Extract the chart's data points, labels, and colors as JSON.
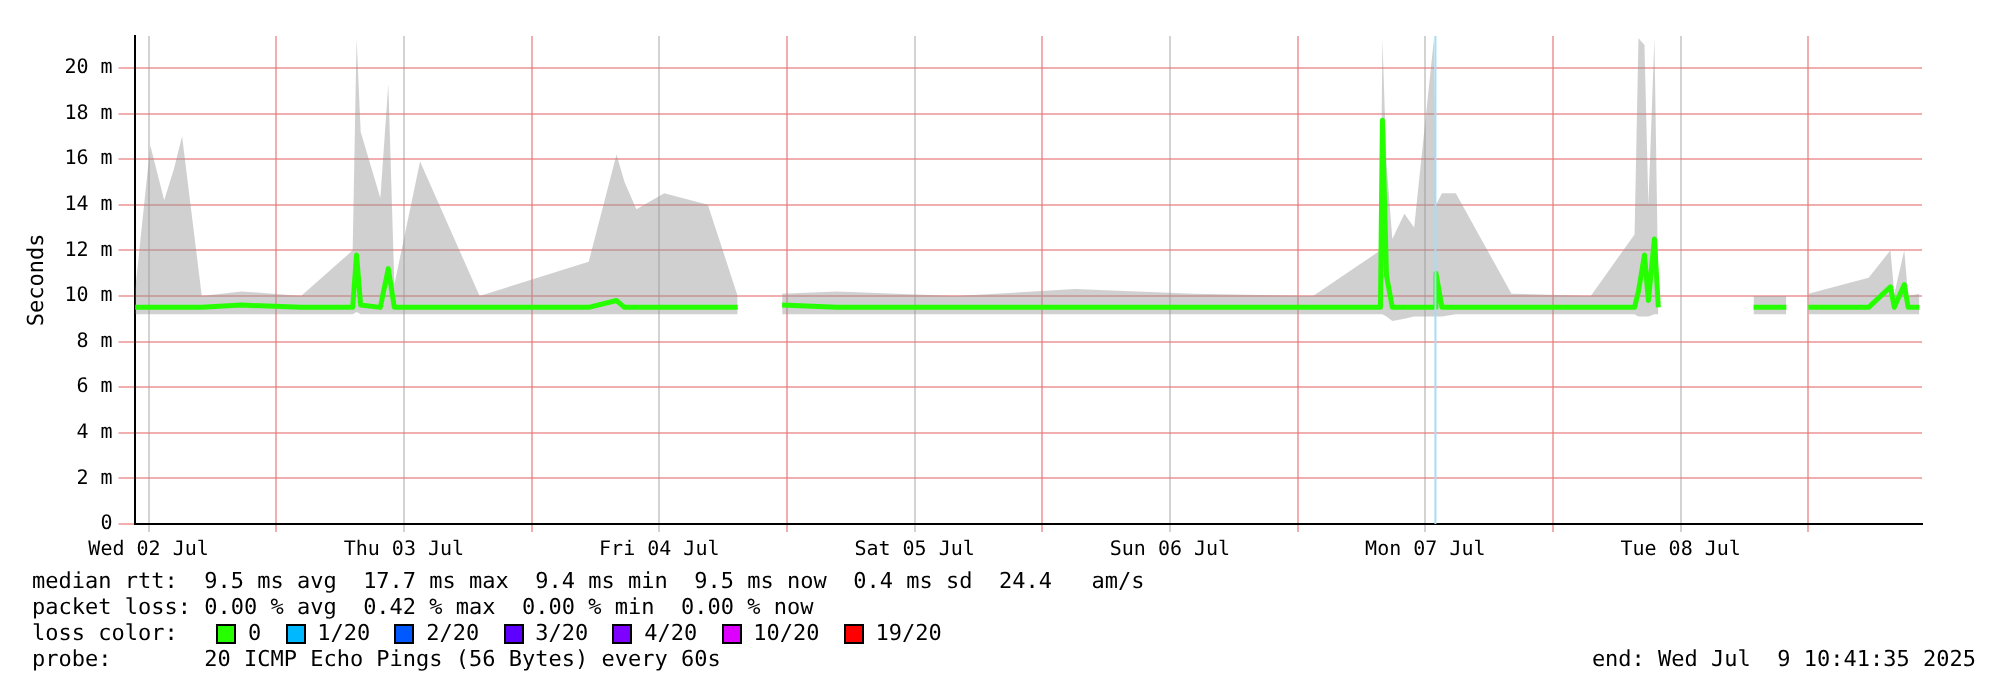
{
  "chart_data": {
    "type": "line",
    "ylabel": "Seconds",
    "legend_title": "loss color:",
    "legend": "bottom",
    "grid": true,
    "marker": "none",
    "line_style": "solid",
    "xlim": [
      "2025-07-02T10:41",
      "2025-07-09T10:41"
    ],
    "xticks": [
      {
        "value": "2025-07-02T12:00",
        "label": "Wed 02 Jul"
      },
      {
        "value": "2025-07-03T00:00",
        "label": null
      },
      {
        "value": "2025-07-03T12:00",
        "label": "Thu 03 Jul"
      },
      {
        "value": "2025-07-04T00:00",
        "label": null
      },
      {
        "value": "2025-07-04T12:00",
        "label": "Fri 04 Jul"
      },
      {
        "value": "2025-07-05T00:00",
        "label": null
      },
      {
        "value": "2025-07-05T12:00",
        "label": "Sat 05 Jul"
      },
      {
        "value": "2025-07-06T00:00",
        "label": null
      },
      {
        "value": "2025-07-06T12:00",
        "label": "Sun 06 Jul"
      },
      {
        "value": "2025-07-07T00:00",
        "label": null
      },
      {
        "value": "2025-07-07T12:00",
        "label": "Mon 07 Jul"
      },
      {
        "value": "2025-07-08T00:00",
        "label": null
      },
      {
        "value": "2025-07-08T12:00",
        "label": "Tue 08 Jul"
      },
      {
        "value": "2025-07-09T00:00",
        "label": null
      }
    ],
    "ylim": [
      0,
      21.4
    ],
    "yticks": [
      0,
      {
        "value": 2,
        "label": "2 m"
      },
      {
        "value": 4,
        "label": "4 m"
      },
      {
        "value": 6,
        "label": "6 m"
      },
      {
        "value": 8,
        "label": "8 m"
      },
      {
        "value": 10,
        "label": "10 m"
      },
      {
        "value": 12,
        "label": "12 m"
      },
      {
        "value": 14,
        "label": "14 m"
      },
      {
        "value": 16,
        "label": "16 m"
      },
      {
        "value": 18,
        "label": "18 m"
      },
      {
        "value": 20,
        "label": "20 m"
      }
    ],
    "ref_lines": [
      {
        "axis": "x",
        "value": "2025-07-07T12:57",
        "color": "#a8dcf4"
      }
    ],
    "series": [
      {
        "name": "0",
        "color": "#26ff00",
        "x": [
          "2025-07-02T10:45",
          "2025-07-02T12:10",
          "2025-07-02T13:28",
          "2025-07-02T14:24",
          "2025-07-02T15:09",
          "2025-07-02T17:00",
          "2025-07-02T20:44",
          "2025-07-03T02:20",
          "2025-07-03T07:11",
          "2025-07-03T07:33",
          "2025-07-03T07:56",
          "2025-07-03T09:47",
          "2025-07-03T10:32",
          "2025-07-03T11:06",
          "2025-07-03T13:31",
          "2025-07-03T19:07",
          "2025-07-04T05:22",
          "2025-07-04T07:59",
          "2025-07-04T08:44",
          "2025-07-04T09:51",
          "2025-07-04T12:28",
          "2025-07-04T16:34",
          "2025-07-04T19:22",
          "2025-07-04T21:00",
          "2025-07-04T23:33",
          "2025-07-05T04:41",
          "2025-07-05T15:53",
          "2025-07-06T03:04",
          "2025-07-06T14:15",
          "2025-07-07T01:27",
          "2025-07-07T07:47",
          "2025-07-07T07:58",
          "2025-07-07T08:21",
          "2025-07-07T08:54",
          "2025-07-07T10:02",
          "2025-07-07T10:57",
          "2025-07-07T12:49",
          "2025-07-07T13:00",
          "2025-07-07T13:34",
          "2025-07-07T14:52",
          "2025-07-07T20:06",
          "2025-07-08T03:33",
          "2025-07-08T07:40",
          "2025-07-08T08:02",
          "2025-07-08T08:36",
          "2025-07-08T08:58",
          "2025-07-08T09:32",
          "2025-07-08T09:54",
          "2025-07-08T12:00",
          "2025-07-08T18:51",
          "2025-07-08T21:56",
          "2025-07-08T22:30",
          "2025-07-09T00:00",
          "2025-07-09T05:40",
          "2025-07-09T07:43",
          "2025-07-09T08:05",
          "2025-07-09T09:01",
          "2025-07-09T09:23",
          "2025-07-09T10:26"
        ],
        "values": [
          9.5,
          9.5,
          9.5,
          9.5,
          9.5,
          9.5,
          9.6,
          9.5,
          9.5,
          11.8,
          9.6,
          9.5,
          11.2,
          9.5,
          9.5,
          9.5,
          9.5,
          9.8,
          9.5,
          9.5,
          9.5,
          9.5,
          9.5,
          null,
          9.6,
          9.5,
          9.5,
          9.5,
          9.5,
          9.5,
          9.5,
          17.7,
          10.9,
          9.5,
          9.5,
          9.5,
          9.5,
          11,
          9.5,
          9.5,
          9.5,
          9.5,
          9.5,
          10.2,
          11.8,
          9.8,
          12.5,
          9.5,
          null,
          9.5,
          9.5,
          null,
          9.5,
          9.5,
          10.4,
          9.5,
          10.5,
          9.5,
          9.5
        ],
        "lower": [
          9.2,
          9.2,
          9.2,
          9.2,
          9.2,
          9.2,
          9.2,
          9.2,
          9.2,
          9.3,
          9.2,
          9.2,
          9.2,
          9.2,
          9.2,
          9.2,
          9.2,
          9.2,
          9.2,
          9.2,
          9.2,
          9.2,
          9.2,
          null,
          9.2,
          9.2,
          9.2,
          9.2,
          9.2,
          9.2,
          9.2,
          9.2,
          9.1,
          8.9,
          9,
          9.1,
          9.1,
          9.1,
          9.1,
          9.2,
          9.2,
          9.2,
          9.2,
          9.1,
          9.1,
          9.1,
          9.2,
          9.2,
          null,
          9.2,
          9.2,
          null,
          9.2,
          9.2,
          9.2,
          9.2,
          9.2,
          9.2,
          9.2
        ],
        "upper": [
          10.3,
          16.6,
          14.2,
          15.6,
          17,
          10,
          10.2,
          10,
          12,
          21.3,
          17.2,
          14.3,
          19.3,
          10.5,
          15.9,
          10,
          11.5,
          16.2,
          15,
          13.8,
          14.5,
          14,
          10,
          null,
          10.1,
          10.2,
          10,
          10.3,
          10.1,
          10,
          12,
          21.3,
          15.8,
          12.5,
          13.6,
          13,
          21.3,
          14,
          14.5,
          14.5,
          10.1,
          10,
          12.7,
          21.3,
          21,
          14,
          21.3,
          10.1,
          null,
          10,
          10,
          null,
          10.1,
          10.8,
          12,
          10.1,
          12,
          10,
          10.1
        ]
      },
      {
        "name": "1/20",
        "color": "#00b8ff"
      },
      {
        "name": "2/20",
        "color": "#0059ff"
      },
      {
        "name": "3/20",
        "color": "#5e00ff"
      },
      {
        "name": "4/20",
        "color": "#7e00ff"
      },
      {
        "name": "10/20",
        "color": "#dd00ff"
      },
      {
        "name": "19/20",
        "color": "#ff0000"
      }
    ],
    "annotations": [
      "median rtt:  9.5 ms avg  17.7 ms max  9.4 ms min  9.5 ms now  0.4 ms sd  24.4   am/s",
      "packet loss: 0.00 % avg  0.42 % max  0.00 % min  0.00 % now",
      "probe:       20 ICMP Echo Pings (56 Bytes) every 60s",
      "end: Wed Jul  9 10:41:35 2025"
    ]
  }
}
